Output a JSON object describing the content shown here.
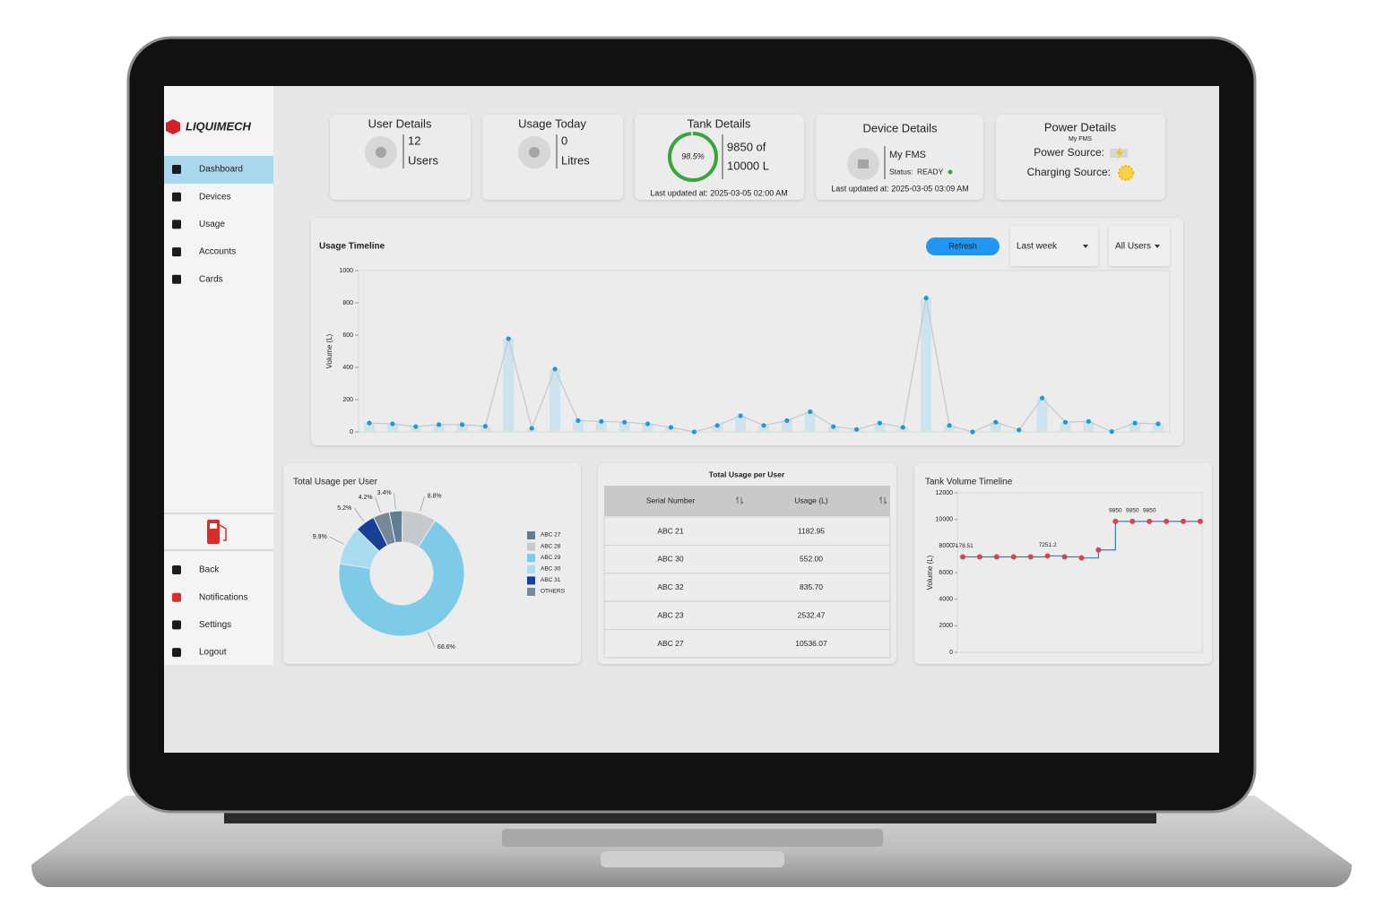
{
  "sidebar": {
    "logo": "LIQUIMECH",
    "nav": [
      "Dashboard",
      "Devices",
      "Usage",
      "Accounts",
      "Cards"
    ],
    "footer_nav": [
      "Back",
      "Notifications",
      "Settings",
      "Logout"
    ]
  },
  "cards": {
    "user_details": {
      "title": "User Details",
      "count": "12",
      "unit": "Users"
    },
    "usage_today": {
      "title": "Usage Today",
      "count": "0",
      "unit": "Litres"
    },
    "tank_details": {
      "title": "Tank Details",
      "level": {
        "value": 98.5,
        "label": "98.5%"
      },
      "volume": "9850 of",
      "capacity": "10000 L",
      "updated": "Last updated at: 2025-03-05 02:00 AM"
    },
    "device_details": {
      "title": "Device Details",
      "name": "My FMS",
      "status_label": "Status:",
      "status": "READY",
      "updated": "Last updated at: 2025-03-05 03:09 AM"
    },
    "power_details": {
      "title": "Power Details",
      "subtitle": "My FMS",
      "power_source": "Power Source:",
      "charging_source": "Charging Source:"
    }
  },
  "usage_timeline": {
    "type": "line",
    "title": "Usage Timeline",
    "refresh": "Refresh",
    "period": "Last week",
    "users": "All Users",
    "y_label": "Volume (L)",
    "ylim": [
      0,
      1000
    ],
    "yticks": [
      0,
      200,
      400,
      600,
      800,
      1000
    ],
    "values": [
      55,
      50,
      33,
      45,
      45,
      35,
      578,
      22,
      390,
      70,
      65,
      60,
      50,
      28,
      0,
      40,
      100,
      40,
      70,
      125,
      33,
      15,
      55,
      28,
      830,
      40,
      0,
      60,
      12,
      210,
      60,
      65,
      2,
      55,
      50
    ],
    "color": "#1b9ad6",
    "line_color": "#c4c8cc",
    "bar_color": "#cde4ef"
  },
  "usage_pie": {
    "type": "pie",
    "title": "Total Usage per User",
    "series": [
      {
        "name": "ABC 27",
        "color": "#5f7d95"
      },
      {
        "name": "ABC 28",
        "color": "#c5cacf"
      },
      {
        "name": "ABC 29",
        "color": "#7dcbe9"
      },
      {
        "name": "ABC 30",
        "color": "#a9dcf0"
      },
      {
        "name": "ABC 31",
        "color": "#163f97"
      },
      {
        "name": "OTHERS",
        "color": "#778899"
      }
    ],
    "values": [
      3.4,
      8.8,
      68.6,
      9.9,
      5.2,
      4.2
    ],
    "value_labels": [
      "3.4%",
      "8.8%",
      "68.6%",
      "9.9%",
      "5.2%",
      "4.2%"
    ]
  },
  "usage_table": {
    "title": "Total Usage per User",
    "columns": [
      "Serial Number",
      "Usage (L)"
    ],
    "rows": [
      [
        "ABC 21",
        "1182.95"
      ],
      [
        "ABC 30",
        "552.00"
      ],
      [
        "ABC 32",
        "835.70"
      ],
      [
        "ABC 23",
        "2532.47"
      ],
      [
        "ABC 27",
        "10536.07"
      ]
    ]
  },
  "tank_timeline": {
    "type": "line",
    "title": "Tank Volume Timeline",
    "y_label": "Volume (L)",
    "ylim": [
      0,
      12000
    ],
    "yticks": [
      0,
      2000,
      4000,
      6000,
      8000,
      10000,
      12000
    ],
    "values": [
      7178.51,
      7178.51,
      7178.51,
      7178.51,
      7178.51,
      7251.2,
      7178.51,
      7100,
      7700,
      9850,
      9850,
      9850,
      9850,
      9850,
      9850
    ],
    "value_labels": [
      "7178.51",
      null,
      null,
      null,
      null,
      "7251.2",
      null,
      null,
      null,
      "9850",
      "9850",
      "9850",
      null,
      null,
      null
    ],
    "color": "#2f7fc1",
    "marker_color": "#d9434a"
  }
}
